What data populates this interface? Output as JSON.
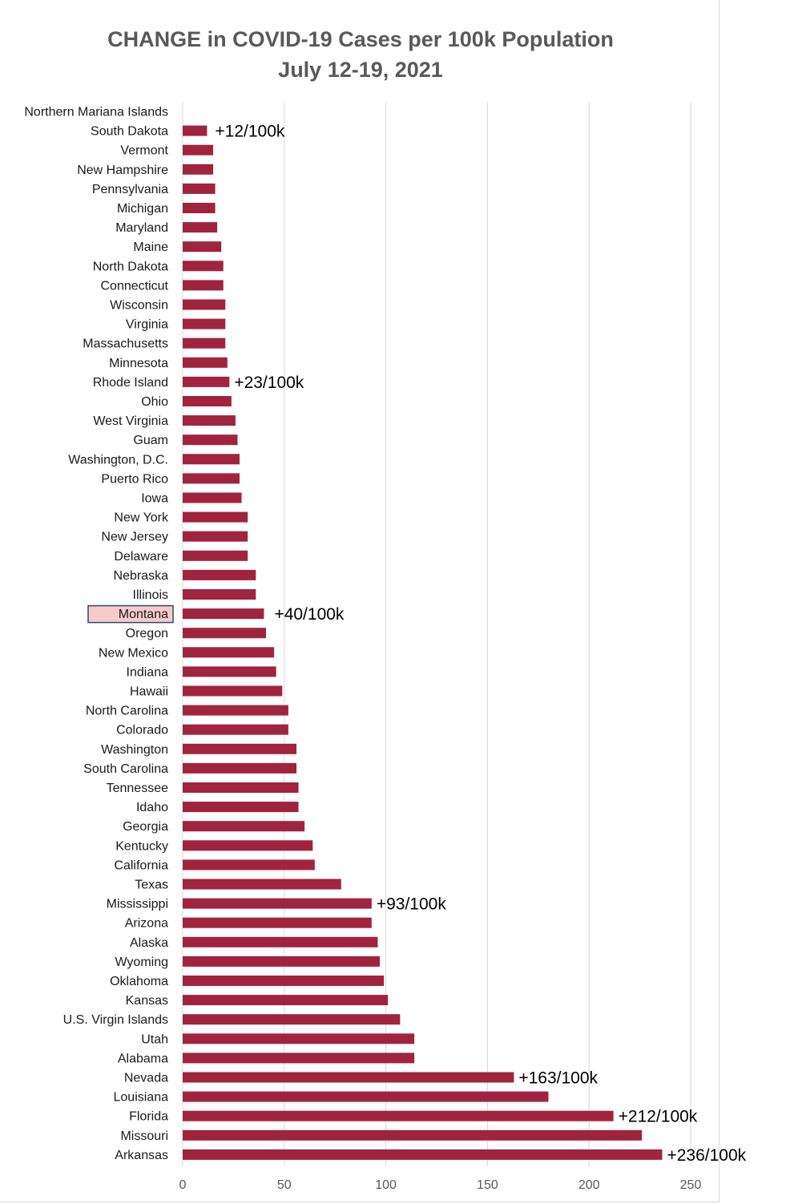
{
  "chart_data": {
    "type": "bar",
    "orientation": "horizontal",
    "title": "CHANGE in COVID-19 Cases per 100k Population",
    "subtitle": "July 12-19, 2021",
    "xlabel": "",
    "ylabel": "",
    "xlim": [
      0,
      250
    ],
    "ticks": [
      0,
      50,
      100,
      150,
      200,
      250
    ],
    "grid": true,
    "bar_color": "#a0243f",
    "highlight_category": "Montana",
    "highlight_fill": "#f8cbcb",
    "highlight_border": "#2e4a6b",
    "grid_color": "#d9d9d9",
    "categories": [
      "Northern Mariana Islands",
      "South Dakota",
      "Vermont",
      "New Hampshire",
      "Pennsylvania",
      "Michigan",
      "Maryland",
      "Maine",
      "North Dakota",
      "Connecticut",
      "Wisconsin",
      "Virginia",
      "Massachusetts",
      "Minnesota",
      "Rhode Island",
      "Ohio",
      "West Virginia",
      "Guam",
      "Washington, D.C.",
      "Puerto Rico",
      "Iowa",
      "New York",
      "New Jersey",
      "Delaware",
      "Nebraska",
      "Illinois",
      "Montana",
      "Oregon",
      "New Mexico",
      "Indiana",
      "Hawaii",
      "North Carolina",
      "Colorado",
      "Washington",
      "South Carolina",
      "Tennessee",
      "Idaho",
      "Georgia",
      "Kentucky",
      "California",
      "Texas",
      "Mississippi",
      "Arizona",
      "Alaska",
      "Wyoming",
      "Oklahoma",
      "Kansas",
      "U.S. Virgin Islands",
      "Utah",
      "Alabama",
      "Nevada",
      "Louisiana",
      "Florida",
      "Missouri",
      "Arkansas"
    ],
    "values": [
      0,
      12,
      15,
      15,
      16,
      16,
      17,
      19,
      20,
      20,
      21,
      21,
      21,
      22,
      23,
      24,
      26,
      27,
      28,
      28,
      29,
      32,
      32,
      32,
      36,
      36,
      40,
      41,
      45,
      46,
      49,
      52,
      52,
      56,
      56,
      57,
      57,
      60,
      64,
      65,
      78,
      93,
      93,
      96,
      97,
      99,
      101,
      107,
      114,
      114,
      163,
      180,
      212,
      226,
      236
    ],
    "annotations": [
      {
        "category": "South Dakota",
        "text": "+12/100k"
      },
      {
        "category": "Rhode Island",
        "text": "+23/100k"
      },
      {
        "category": "Montana",
        "text": "+40/100k"
      },
      {
        "category": "Mississippi",
        "text": "+93/100k"
      },
      {
        "category": "Nevada",
        "text": "+163/100k"
      },
      {
        "category": "Florida",
        "text": "+212/100k"
      },
      {
        "category": "Arkansas",
        "text": "+236/100k"
      }
    ]
  }
}
